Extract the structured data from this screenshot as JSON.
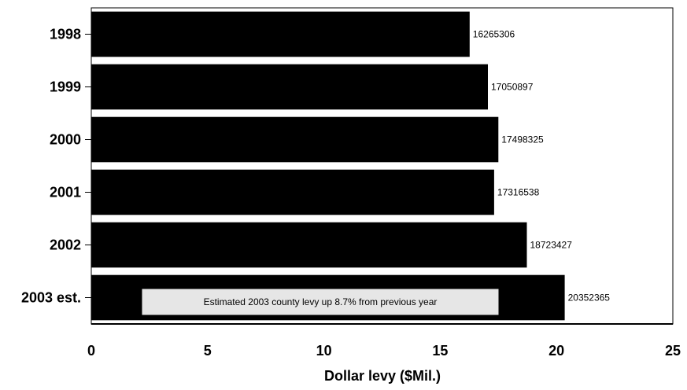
{
  "chart_data": {
    "type": "bar",
    "orientation": "horizontal",
    "categories": [
      "1998",
      "1999",
      "2000",
      "2001",
      "2002",
      "2003 est."
    ],
    "values": [
      16.265306,
      17.050897,
      17.498325,
      17.316538,
      18.723427,
      20.352365
    ],
    "data_labels": [
      "16265306",
      "17050897",
      "17498325",
      "17316538",
      "18723427",
      "20352365"
    ],
    "x_ticks": [
      "0",
      "5",
      "10",
      "15",
      "20",
      "25"
    ],
    "xlim": [
      0,
      25
    ],
    "xlabel": "Dollar levy ($Mil.)",
    "ylabel": "",
    "title": "",
    "grid": false,
    "bar_color": "#000000",
    "annotation": "Estimated 2003 county levy up 8.7% from previous year"
  }
}
